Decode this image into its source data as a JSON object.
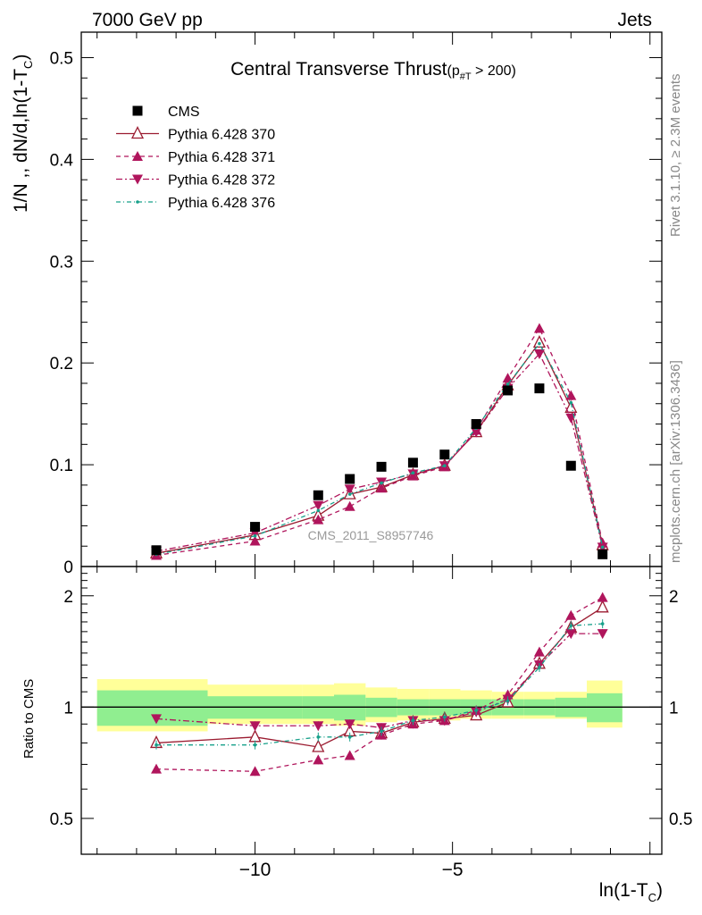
{
  "header": {
    "energy_label": "7000 GeV pp",
    "category_label": "Jets"
  },
  "side_text": {
    "rivet": "Rivet 3.1.10, ≥ 2.3M events",
    "mcplots": "mcplots.cern.ch [arXiv:1306.3436]"
  },
  "chart_data": [
    {
      "type": "scatter",
      "panel": "main",
      "title": "Central Transverse Thrust",
      "title_suffix_prefix": "(p",
      "title_suffix_sub": "#T",
      "title_suffix_rest": " > 200)",
      "ylabel": "1/N ,, dN/d,ln(1-T",
      "ylabel_sub": "C",
      "ylabel_close": ")",
      "xlabel": "ln(1-T",
      "xlabel_sub": "C",
      "xlabel_close": ")",
      "watermark": "CMS_2011_S8957746",
      "xlim": [
        -14.4,
        0.3
      ],
      "ylim": [
        0,
        0.525
      ],
      "yticks": [
        0,
        0.1,
        0.2,
        0.3,
        0.4,
        0.5
      ],
      "ytick_labels": [
        "0",
        "0.1",
        "0.2",
        "0.3",
        "0.4",
        "0.5"
      ],
      "xticks": [
        -10,
        -5
      ],
      "xtick_labels": [
        "−10",
        "−5"
      ],
      "legend_position": "top-left",
      "x": [
        -12.5,
        -10.0,
        -8.4,
        -7.6,
        -6.8,
        -6.0,
        -5.2,
        -4.4,
        -3.6,
        -2.8,
        -2.0,
        -1.2
      ],
      "x_bin_edges": [
        -14.0,
        -11.2,
        -8.8,
        -8.0,
        -7.2,
        -6.4,
        -5.6,
        -4.8,
        -4.0,
        -3.2,
        -2.4,
        -1.6,
        -0.7
      ],
      "series": [
        {
          "name": "CMS",
          "style": "data",
          "color": "#000000",
          "values": [
            0.016,
            0.039,
            0.07,
            0.086,
            0.098,
            0.102,
            0.11,
            0.14,
            0.173,
            0.175,
            0.099,
            0.012
          ]
        },
        {
          "name": "Pythia 6.428 370",
          "style": "solid",
          "marker": "triangle-up-open",
          "color": "#9b1b30",
          "values": [
            0.013,
            0.031,
            0.05,
            0.071,
            0.078,
            0.09,
            0.099,
            0.132,
            0.178,
            0.22,
            0.156,
            0.021
          ]
        },
        {
          "name": "Pythia 6.428 371",
          "style": "dashed",
          "marker": "triangle-up",
          "color": "#b0155c",
          "values": [
            0.011,
            0.025,
            0.046,
            0.059,
            0.077,
            0.089,
            0.098,
            0.134,
            0.185,
            0.234,
            0.168,
            0.023
          ]
        },
        {
          "name": "Pythia 6.428 372",
          "style": "dashdot",
          "marker": "triangle-down",
          "color": "#b0155c",
          "values": [
            0.015,
            0.033,
            0.06,
            0.076,
            0.083,
            0.091,
            0.099,
            0.132,
            0.175,
            0.209,
            0.146,
            0.019
          ]
        },
        {
          "name": "Pythia 6.428 376",
          "style": "dashdot-teal",
          "marker": "dot",
          "color": "#17a08a",
          "values": [
            0.012,
            0.03,
            0.055,
            0.071,
            0.082,
            0.092,
            0.099,
            0.136,
            0.179,
            0.219,
            0.161,
            0.019
          ]
        }
      ]
    },
    {
      "type": "scatter",
      "panel": "ratio",
      "ylabel": "Ratio to CMS",
      "ylim": [
        0.4,
        2.4
      ],
      "log_scale": true,
      "yticks": [
        0.5,
        1,
        2
      ],
      "ytick_labels": [
        "0.5",
        "1",
        "2"
      ],
      "band_inner_color": "#90ee90",
      "band_outer_color": "#ffff99",
      "band_inner": [
        [
          0.89,
          1.11
        ],
        [
          0.93,
          1.07
        ],
        [
          0.93,
          1.07
        ],
        [
          0.92,
          1.08
        ],
        [
          0.94,
          1.06
        ],
        [
          0.95,
          1.05
        ],
        [
          0.95,
          1.05
        ],
        [
          0.95,
          1.05
        ],
        [
          0.95,
          1.05
        ],
        [
          0.95,
          1.05
        ],
        [
          0.94,
          1.06
        ],
        [
          0.91,
          1.09
        ]
      ],
      "band_outer": [
        [
          0.86,
          1.19
        ],
        [
          0.9,
          1.15
        ],
        [
          0.9,
          1.15
        ],
        [
          0.89,
          1.16
        ],
        [
          0.91,
          1.13
        ],
        [
          0.92,
          1.12
        ],
        [
          0.92,
          1.12
        ],
        [
          0.93,
          1.11
        ],
        [
          0.93,
          1.1
        ],
        [
          0.93,
          1.1
        ],
        [
          0.93,
          1.1
        ],
        [
          0.88,
          1.18
        ]
      ],
      "series": [
        {
          "name": "Pythia 6.428 370",
          "values": [
            0.8,
            0.83,
            0.78,
            0.86,
            0.85,
            0.91,
            0.93,
            0.95,
            1.03,
            1.31,
            1.64,
            1.86
          ]
        },
        {
          "name": "Pythia 6.428 371",
          "values": [
            0.68,
            0.67,
            0.72,
            0.74,
            0.84,
            0.9,
            0.92,
            0.98,
            1.08,
            1.41,
            1.77,
            1.98
          ]
        },
        {
          "name": "Pythia 6.428 372",
          "values": [
            0.93,
            0.89,
            0.89,
            0.9,
            0.88,
            0.92,
            0.92,
            0.97,
            1.05,
            1.3,
            1.58,
            1.58
          ]
        },
        {
          "name": "Pythia 6.428 376",
          "values": [
            0.79,
            0.79,
            0.83,
            0.83,
            0.86,
            0.92,
            0.94,
            0.98,
            1.04,
            1.28,
            1.66,
            1.68
          ]
        }
      ]
    }
  ]
}
